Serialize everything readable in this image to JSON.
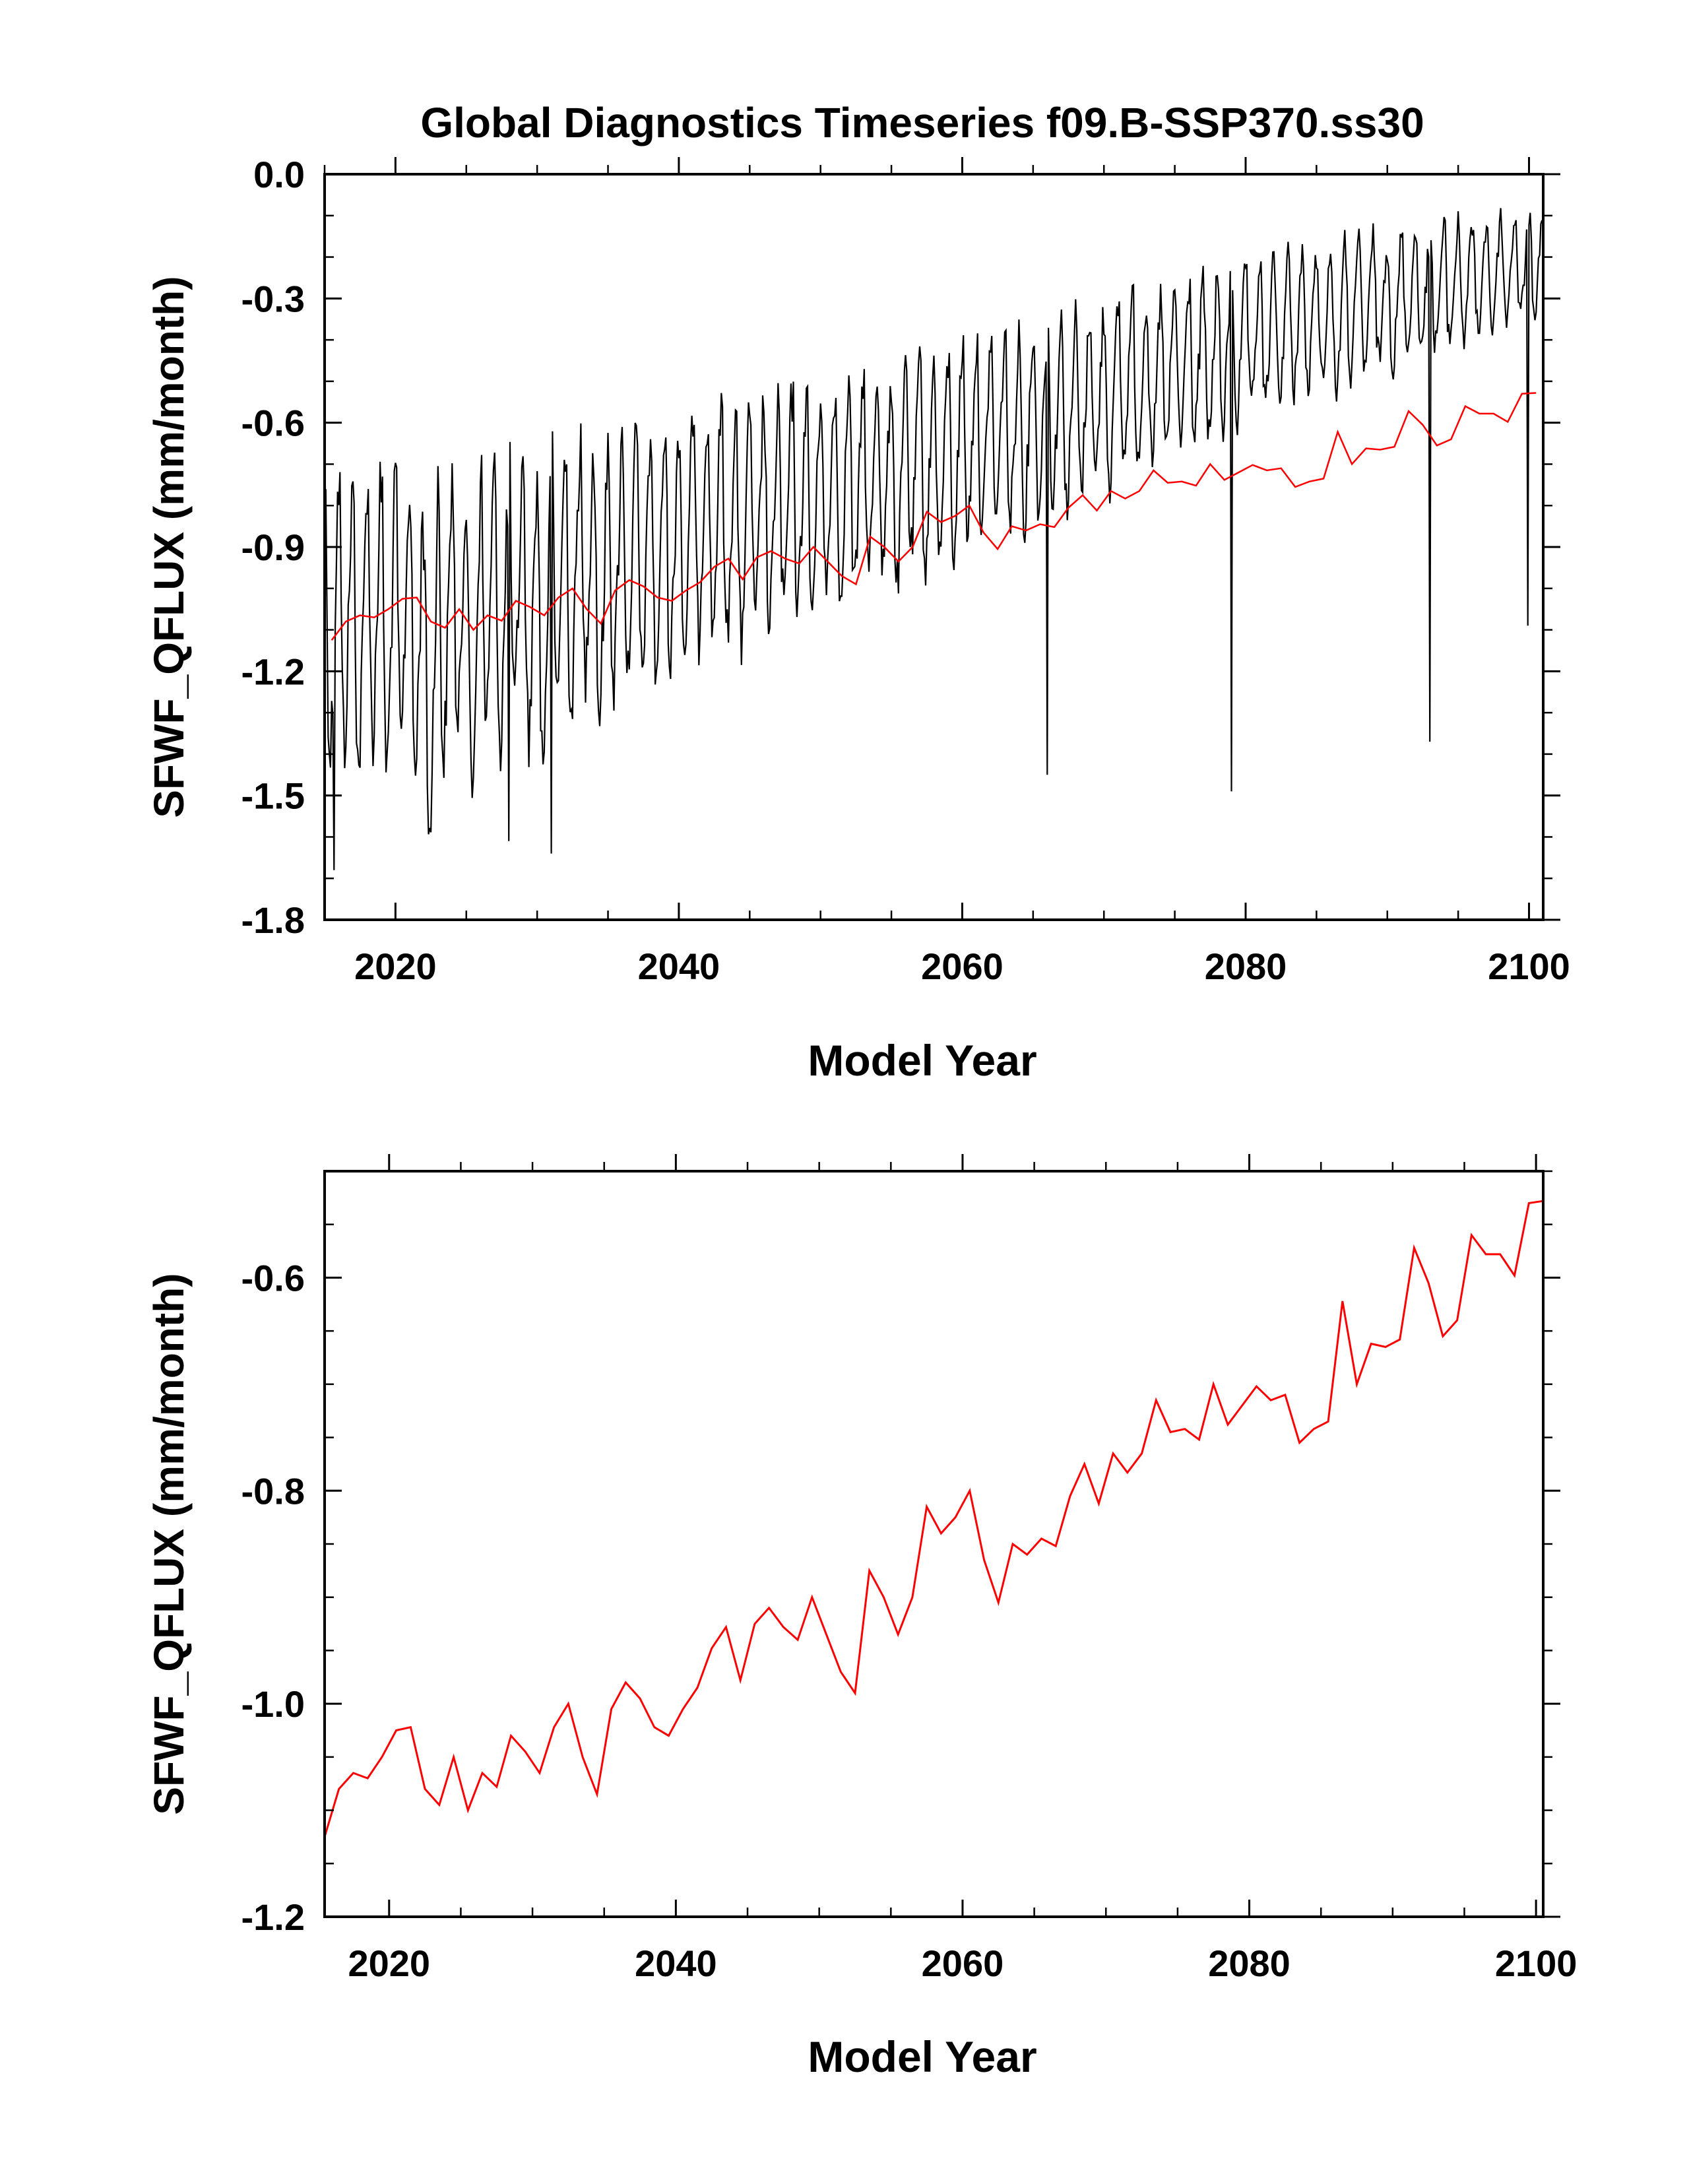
{
  "title": "Global Diagnostics Timeseries f09.B-SSP370.ss30",
  "chart_data": [
    {
      "type": "line",
      "name": "monthly-and-annual",
      "xlabel": "Model Year",
      "ylabel": "SFWF_QFLUX (mm/month)",
      "xlim": [
        2015,
        2101
      ],
      "ylim": [
        -1.8,
        0.0
      ],
      "xticks": [
        2020,
        2040,
        2060,
        2080,
        2100
      ],
      "xtick_labels": [
        "2020",
        "2040",
        "2060",
        "2080",
        "2100"
      ],
      "yticks": [
        0.0,
        -0.3,
        -0.6,
        -0.9,
        -1.2,
        -1.5,
        -1.8
      ],
      "ytick_labels": [
        "0.0",
        "-0.3",
        "-0.6",
        "-0.9",
        "-1.2",
        "-1.5",
        "-1.8"
      ],
      "series": [
        {
          "name": "monthly",
          "color": "#000000",
          "seasonal_min": [
            -1.4,
            -1.38,
            -1.44,
            -1.36,
            -1.44,
            -1.38,
            -1.45,
            -1.6,
            -1.42,
            -1.36,
            -1.5,
            -1.32,
            -1.38,
            -1.3,
            -1.36,
            -1.42,
            -1.25,
            -1.31,
            -1.21,
            -1.31,
            -1.23,
            -1.2,
            -1.22,
            -1.21,
            -1.17,
            -1.16,
            -1.11,
            -1.1,
            -1.12,
            -1.13,
            -1.09,
            -1.11,
            -1.05,
            -1.05,
            -1.06,
            -1.01,
            -1.01,
            -1.01,
            -0.97,
            -0.96,
            -1.0,
            -0.92,
            -0.94,
            -0.93,
            -0.91,
            -0.86,
            -0.86,
            -0.83,
            -0.84,
            -0.83,
            -0.8,
            -0.78,
            -0.8,
            -0.76,
            -0.73,
            -0.74,
            -0.69,
            -0.68,
            -0.71,
            -0.67,
            -0.65,
            -0.64,
            -0.64,
            -0.61,
            -0.59,
            -0.58,
            -0.56,
            -0.54,
            -0.52,
            -0.52,
            -0.5,
            -0.52,
            -0.48,
            -0.47,
            -0.45,
            -0.47,
            -0.42,
            -0.43,
            -0.41,
            -0.4,
            -0.39,
            -0.38,
            -0.37,
            -0.35,
            -0.34,
            -0.33
          ],
          "seasonal_max": [
            -0.73,
            -0.71,
            -0.75,
            -0.7,
            -0.74,
            -0.71,
            -0.74,
            -0.83,
            -0.73,
            -0.7,
            -0.78,
            -0.68,
            -0.71,
            -0.67,
            -0.7,
            -0.73,
            -0.64,
            -0.67,
            -0.62,
            -0.67,
            -0.63,
            -0.61,
            -0.62,
            -0.61,
            -0.59,
            -0.58,
            -0.55,
            -0.55,
            -0.56,
            -0.56,
            -0.54,
            -0.55,
            -0.52,
            -0.51,
            -0.52,
            -0.49,
            -0.49,
            -0.49,
            -0.46,
            -0.46,
            -0.48,
            -0.43,
            -0.45,
            -0.44,
            -0.42,
            -0.39,
            -0.4,
            -0.38,
            -0.38,
            -0.37,
            -0.35,
            -0.34,
            -0.35,
            -0.33,
            -0.31,
            -0.32,
            -0.29,
            -0.28,
            -0.3,
            -0.27,
            -0.26,
            -0.25,
            -0.25,
            -0.23,
            -0.22,
            -0.21,
            -0.2,
            -0.19,
            -0.18,
            -0.18,
            -0.17,
            -0.18,
            -0.16,
            -0.15,
            -0.14,
            -0.15,
            -0.13,
            -0.13,
            -0.12,
            -0.12,
            -0.11,
            -0.11,
            -0.1,
            -0.09,
            -0.09,
            -0.08
          ],
          "notable_extremes": [
            {
              "x": 2015.7,
              "y": -1.68
            },
            {
              "x": 2028.0,
              "y": -1.61
            },
            {
              "x": 2031.0,
              "y": -1.64
            },
            {
              "x": 2066.0,
              "y": -1.45
            },
            {
              "x": 2079.0,
              "y": -1.49
            },
            {
              "x": 2093.0,
              "y": -1.37
            },
            {
              "x": 2099.9,
              "y": -1.09
            },
            {
              "x": 2100.8,
              "y": -0.12
            }
          ]
        },
        {
          "name": "annual mean",
          "color": "#ff0000",
          "x": [
            2015.5,
            2016.5,
            2017.5,
            2018.5,
            2019.5,
            2020.5,
            2021.5,
            2022.5,
            2023.5,
            2024.5,
            2025.5,
            2026.5,
            2027.5,
            2028.5,
            2029.5,
            2030.5,
            2031.5,
            2032.5,
            2033.5,
            2034.5,
            2035.5,
            2036.5,
            2037.5,
            2038.5,
            2039.5,
            2040.5,
            2041.5,
            2042.5,
            2043.5,
            2044.5,
            2045.5,
            2046.5,
            2047.5,
            2048.5,
            2049.5,
            2050.5,
            2051.5,
            2052.5,
            2053.5,
            2054.5,
            2055.5,
            2056.5,
            2057.5,
            2058.5,
            2059.5,
            2060.5,
            2061.5,
            2062.5,
            2063.5,
            2064.5,
            2065.5,
            2066.5,
            2067.5,
            2068.5,
            2069.5,
            2070.5,
            2071.5,
            2072.5,
            2073.5,
            2074.5,
            2075.5,
            2076.5,
            2077.5,
            2078.5,
            2079.5,
            2080.5,
            2081.5,
            2082.5,
            2083.5,
            2084.5,
            2085.5,
            2086.5,
            2087.5,
            2088.5,
            2089.5,
            2090.5,
            2091.5,
            2092.5,
            2093.5,
            2094.5,
            2095.5,
            2096.5,
            2097.5,
            2098.5,
            2099.5,
            2100.5
          ],
          "values": [
            -1.125,
            -1.08,
            -1.065,
            -1.07,
            -1.05,
            -1.025,
            -1.022,
            -1.08,
            -1.095,
            -1.05,
            -1.1,
            -1.065,
            -1.078,
            -1.03,
            -1.045,
            -1.065,
            -1.022,
            -1.0,
            -1.05,
            -1.085,
            -1.005,
            -0.98,
            -0.995,
            -1.022,
            -1.03,
            -1.005,
            -0.985,
            -0.948,
            -0.928,
            -0.978,
            -0.925,
            -0.91,
            -0.928,
            -0.94,
            -0.9,
            -0.935,
            -0.97,
            -0.99,
            -0.875,
            -0.9,
            -0.935,
            -0.9,
            -0.815,
            -0.84,
            -0.825,
            -0.8,
            -0.865,
            -0.905,
            -0.85,
            -0.86,
            -0.845,
            -0.852,
            -0.805,
            -0.775,
            -0.812,
            -0.765,
            -0.783,
            -0.765,
            -0.715,
            -0.745,
            -0.742,
            -0.752,
            -0.7,
            -0.738,
            -0.72,
            -0.702,
            -0.715,
            -0.71,
            -0.755,
            -0.742,
            -0.735,
            -0.622,
            -0.7,
            -0.662,
            -0.665,
            -0.658,
            -0.572,
            -0.605,
            -0.655,
            -0.64,
            -0.56,
            -0.578,
            -0.578,
            -0.598,
            -0.53,
            -0.528
          ]
        }
      ]
    },
    {
      "type": "line",
      "name": "annual",
      "xlabel": "Model Year",
      "ylabel": "SFWF_QFLUX (mm/month)",
      "xlim": [
        2015.5,
        2100.5
      ],
      "ylim": [
        -1.2,
        -0.5
      ],
      "xticks": [
        2020,
        2040,
        2060,
        2080,
        2100
      ],
      "xtick_labels": [
        "2020",
        "2040",
        "2060",
        "2080",
        "2100"
      ],
      "yticks": [
        -0.6,
        -0.8,
        -1.0,
        -1.2
      ],
      "ytick_labels": [
        "-0.6",
        "-0.8",
        "-1.0",
        "-1.2"
      ],
      "series": [
        {
          "name": "annual mean",
          "color": "#ff0000",
          "x": [
            2015.5,
            2016.5,
            2017.5,
            2018.5,
            2019.5,
            2020.5,
            2021.5,
            2022.5,
            2023.5,
            2024.5,
            2025.5,
            2026.5,
            2027.5,
            2028.5,
            2029.5,
            2030.5,
            2031.5,
            2032.5,
            2033.5,
            2034.5,
            2035.5,
            2036.5,
            2037.5,
            2038.5,
            2039.5,
            2040.5,
            2041.5,
            2042.5,
            2043.5,
            2044.5,
            2045.5,
            2046.5,
            2047.5,
            2048.5,
            2049.5,
            2050.5,
            2051.5,
            2052.5,
            2053.5,
            2054.5,
            2055.5,
            2056.5,
            2057.5,
            2058.5,
            2059.5,
            2060.5,
            2061.5,
            2062.5,
            2063.5,
            2064.5,
            2065.5,
            2066.5,
            2067.5,
            2068.5,
            2069.5,
            2070.5,
            2071.5,
            2072.5,
            2073.5,
            2074.5,
            2075.5,
            2076.5,
            2077.5,
            2078.5,
            2079.5,
            2080.5,
            2081.5,
            2082.5,
            2083.5,
            2084.5,
            2085.5,
            2086.5,
            2087.5,
            2088.5,
            2089.5,
            2090.5,
            2091.5,
            2092.5,
            2093.5,
            2094.5,
            2095.5,
            2096.5,
            2097.5,
            2098.5,
            2099.5,
            2100.5
          ],
          "values": [
            -1.125,
            -1.08,
            -1.065,
            -1.07,
            -1.05,
            -1.025,
            -1.022,
            -1.08,
            -1.095,
            -1.05,
            -1.1,
            -1.065,
            -1.078,
            -1.03,
            -1.045,
            -1.065,
            -1.022,
            -1.0,
            -1.05,
            -1.085,
            -1.005,
            -0.98,
            -0.995,
            -1.022,
            -1.03,
            -1.005,
            -0.985,
            -0.948,
            -0.928,
            -0.978,
            -0.925,
            -0.91,
            -0.928,
            -0.94,
            -0.9,
            -0.935,
            -0.97,
            -0.99,
            -0.875,
            -0.9,
            -0.935,
            -0.9,
            -0.815,
            -0.84,
            -0.825,
            -0.8,
            -0.865,
            -0.905,
            -0.85,
            -0.86,
            -0.845,
            -0.852,
            -0.805,
            -0.775,
            -0.812,
            -0.765,
            -0.783,
            -0.765,
            -0.715,
            -0.745,
            -0.742,
            -0.752,
            -0.7,
            -0.738,
            -0.72,
            -0.702,
            -0.715,
            -0.71,
            -0.755,
            -0.742,
            -0.735,
            -0.622,
            -0.7,
            -0.662,
            -0.665,
            -0.658,
            -0.572,
            -0.605,
            -0.655,
            -0.64,
            -0.56,
            -0.578,
            -0.578,
            -0.598,
            -0.53,
            -0.528
          ]
        }
      ]
    }
  ]
}
